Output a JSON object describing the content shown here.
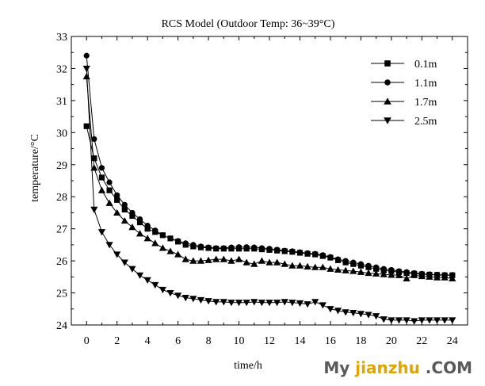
{
  "chart_data": {
    "type": "line",
    "title": "RCS Model (Outdoor Temp: 36~39°C)",
    "xlabel": "time/h",
    "ylabel": "temperature/°C",
    "xlim": [
      -1,
      25
    ],
    "ylim": [
      24,
      33
    ],
    "xticks": [
      0,
      2,
      4,
      6,
      8,
      10,
      12,
      14,
      16,
      18,
      20,
      22,
      24
    ],
    "yticks": [
      24,
      25,
      26,
      27,
      28,
      29,
      30,
      31,
      32,
      33
    ],
    "grid": false,
    "legend_position": "top-right",
    "series": [
      {
        "name": "0.1m",
        "marker": "square",
        "x": [
          0,
          0.5,
          1,
          1.5,
          2,
          2.5,
          3,
          3.5,
          4,
          4.5,
          5,
          5.5,
          6,
          6.5,
          7,
          7.5,
          8,
          8.5,
          9,
          9.5,
          10,
          10.5,
          11,
          11.5,
          12,
          12.5,
          13,
          13.5,
          14,
          14.5,
          15,
          15.5,
          16,
          16.5,
          17,
          17.5,
          18,
          18.5,
          19,
          19.5,
          20,
          20.5,
          21,
          21.5,
          22,
          22.5,
          23,
          23.5,
          24
        ],
        "values": [
          30.2,
          29.2,
          28.6,
          28.2,
          27.9,
          27.6,
          27.4,
          27.2,
          27.0,
          26.9,
          26.8,
          26.7,
          26.6,
          26.5,
          26.45,
          26.42,
          26.4,
          26.38,
          26.38,
          26.38,
          26.38,
          26.38,
          26.38,
          26.36,
          26.34,
          26.32,
          26.3,
          26.28,
          26.25,
          26.22,
          26.2,
          26.15,
          26.1,
          26.02,
          25.95,
          25.9,
          25.85,
          25.8,
          25.75,
          25.7,
          25.68,
          25.65,
          25.62,
          25.6,
          25.58,
          25.57,
          25.56,
          25.55,
          25.55
        ]
      },
      {
        "name": "1.1m",
        "marker": "circle",
        "x": [
          0,
          0.5,
          1,
          1.5,
          2,
          2.5,
          3,
          3.5,
          4,
          4.5,
          5,
          5.5,
          6,
          6.5,
          7,
          7.5,
          8,
          8.5,
          9,
          9.5,
          10,
          10.5,
          11,
          11.5,
          12,
          12.5,
          13,
          13.5,
          14,
          14.5,
          15,
          15.5,
          16,
          16.5,
          17,
          17.5,
          18,
          18.5,
          19,
          19.5,
          20,
          20.5,
          21,
          21.5,
          22,
          22.5,
          23,
          23.5,
          24
        ],
        "values": [
          32.4,
          29.8,
          28.9,
          28.45,
          28.05,
          27.75,
          27.5,
          27.3,
          27.1,
          26.95,
          26.8,
          26.7,
          26.62,
          26.55,
          26.5,
          26.45,
          26.42,
          26.4,
          26.4,
          26.42,
          26.43,
          26.43,
          26.42,
          26.4,
          26.38,
          26.35,
          26.32,
          26.3,
          26.27,
          26.24,
          26.22,
          26.18,
          26.12,
          26.05,
          26.0,
          25.95,
          25.9,
          25.85,
          25.8,
          25.75,
          25.72,
          25.68,
          25.65,
          25.62,
          25.6,
          25.58,
          25.57,
          25.56,
          25.56
        ]
      },
      {
        "name": "1.7m",
        "marker": "triangle-up",
        "x": [
          0,
          0.5,
          1,
          1.5,
          2,
          2.5,
          3,
          3.5,
          4,
          4.5,
          5,
          5.5,
          6,
          6.5,
          7,
          7.5,
          8,
          8.5,
          9,
          9.5,
          10,
          10.5,
          11,
          11.5,
          12,
          12.5,
          13,
          13.5,
          14,
          14.5,
          15,
          15.5,
          16,
          16.5,
          17,
          17.5,
          18,
          18.5,
          19,
          19.5,
          20,
          20.5,
          21,
          21.5,
          22,
          22.5,
          23,
          23.5,
          24
        ],
        "values": [
          31.75,
          28.9,
          28.2,
          27.8,
          27.5,
          27.25,
          27.05,
          26.85,
          26.7,
          26.55,
          26.4,
          26.3,
          26.2,
          26.05,
          26.0,
          26.0,
          26.02,
          26.05,
          26.05,
          26.0,
          26.05,
          25.95,
          25.9,
          26.0,
          25.95,
          25.95,
          25.9,
          25.85,
          25.85,
          25.82,
          25.8,
          25.8,
          25.75,
          25.72,
          25.7,
          25.68,
          25.65,
          25.62,
          25.6,
          25.58,
          25.56,
          25.55,
          25.45,
          25.55,
          25.52,
          25.5,
          25.48,
          25.48,
          25.45
        ]
      },
      {
        "name": "2.5m",
        "marker": "triangle-down",
        "x": [
          0,
          0.5,
          1,
          1.5,
          2,
          2.5,
          3,
          3.5,
          4,
          4.5,
          5,
          5.5,
          6,
          6.5,
          7,
          7.5,
          8,
          8.5,
          9,
          9.5,
          10,
          10.5,
          11,
          11.5,
          12,
          12.5,
          13,
          13.5,
          14,
          14.5,
          15,
          15.5,
          16,
          16.5,
          17,
          17.5,
          18,
          18.5,
          19,
          19.5,
          20,
          20.5,
          21,
          21.5,
          22,
          22.5,
          23,
          23.5,
          24
        ],
        "values": [
          32.0,
          27.6,
          26.9,
          26.5,
          26.2,
          25.95,
          25.75,
          25.55,
          25.4,
          25.25,
          25.1,
          25.0,
          24.92,
          24.85,
          24.82,
          24.78,
          24.75,
          24.72,
          24.72,
          24.7,
          24.7,
          24.7,
          24.72,
          24.7,
          24.7,
          24.7,
          24.72,
          24.7,
          24.68,
          24.65,
          24.72,
          24.62,
          24.5,
          24.45,
          24.4,
          24.38,
          24.35,
          24.32,
          24.28,
          24.18,
          24.15,
          24.15,
          24.15,
          24.12,
          24.15,
          24.15,
          24.15,
          24.15,
          24.15
        ]
      }
    ]
  },
  "watermark": {
    "part1": "My ",
    "part2": "jianzhu",
    "part3": " .COM"
  }
}
